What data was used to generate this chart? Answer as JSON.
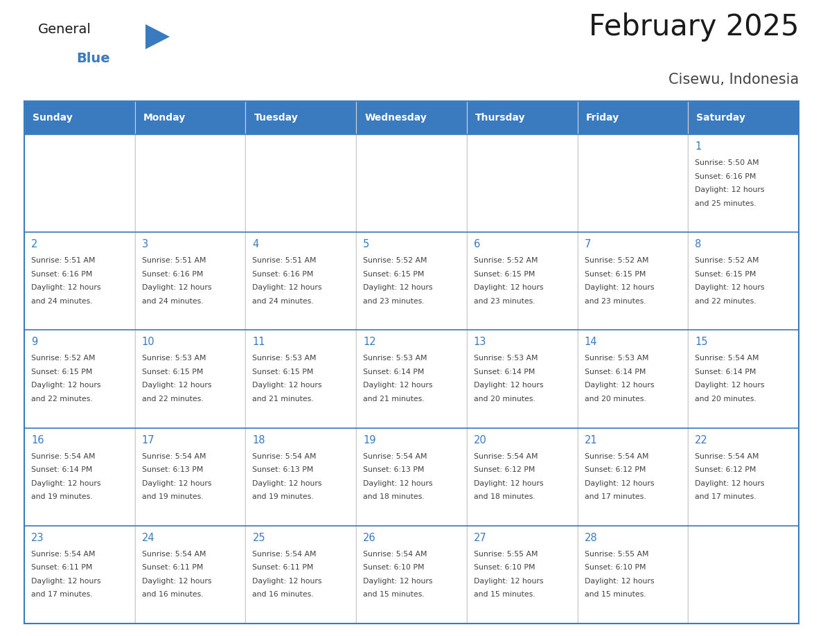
{
  "title": "February 2025",
  "subtitle": "Cisewu, Indonesia",
  "header_bg": "#3a7abf",
  "header_text_color": "#ffffff",
  "day_num_color": "#3a7abf",
  "text_color": "#404040",
  "border_color": "#3a7abf",
  "days_of_week": [
    "Sunday",
    "Monday",
    "Tuesday",
    "Wednesday",
    "Thursday",
    "Friday",
    "Saturday"
  ],
  "weeks": [
    [
      {
        "day": null,
        "sunrise": null,
        "sunset": null,
        "daylight": null
      },
      {
        "day": null,
        "sunrise": null,
        "sunset": null,
        "daylight": null
      },
      {
        "day": null,
        "sunrise": null,
        "sunset": null,
        "daylight": null
      },
      {
        "day": null,
        "sunrise": null,
        "sunset": null,
        "daylight": null
      },
      {
        "day": null,
        "sunrise": null,
        "sunset": null,
        "daylight": null
      },
      {
        "day": null,
        "sunrise": null,
        "sunset": null,
        "daylight": null
      },
      {
        "day": 1,
        "sunrise": "5:50 AM",
        "sunset": "6:16 PM",
        "daylight": "12 hours and 25 minutes."
      }
    ],
    [
      {
        "day": 2,
        "sunrise": "5:51 AM",
        "sunset": "6:16 PM",
        "daylight": "12 hours and 24 minutes."
      },
      {
        "day": 3,
        "sunrise": "5:51 AM",
        "sunset": "6:16 PM",
        "daylight": "12 hours and 24 minutes."
      },
      {
        "day": 4,
        "sunrise": "5:51 AM",
        "sunset": "6:16 PM",
        "daylight": "12 hours and 24 minutes."
      },
      {
        "day": 5,
        "sunrise": "5:52 AM",
        "sunset": "6:15 PM",
        "daylight": "12 hours and 23 minutes."
      },
      {
        "day": 6,
        "sunrise": "5:52 AM",
        "sunset": "6:15 PM",
        "daylight": "12 hours and 23 minutes."
      },
      {
        "day": 7,
        "sunrise": "5:52 AM",
        "sunset": "6:15 PM",
        "daylight": "12 hours and 23 minutes."
      },
      {
        "day": 8,
        "sunrise": "5:52 AM",
        "sunset": "6:15 PM",
        "daylight": "12 hours and 22 minutes."
      }
    ],
    [
      {
        "day": 9,
        "sunrise": "5:52 AM",
        "sunset": "6:15 PM",
        "daylight": "12 hours and 22 minutes."
      },
      {
        "day": 10,
        "sunrise": "5:53 AM",
        "sunset": "6:15 PM",
        "daylight": "12 hours and 22 minutes."
      },
      {
        "day": 11,
        "sunrise": "5:53 AM",
        "sunset": "6:15 PM",
        "daylight": "12 hours and 21 minutes."
      },
      {
        "day": 12,
        "sunrise": "5:53 AM",
        "sunset": "6:14 PM",
        "daylight": "12 hours and 21 minutes."
      },
      {
        "day": 13,
        "sunrise": "5:53 AM",
        "sunset": "6:14 PM",
        "daylight": "12 hours and 20 minutes."
      },
      {
        "day": 14,
        "sunrise": "5:53 AM",
        "sunset": "6:14 PM",
        "daylight": "12 hours and 20 minutes."
      },
      {
        "day": 15,
        "sunrise": "5:54 AM",
        "sunset": "6:14 PM",
        "daylight": "12 hours and 20 minutes."
      }
    ],
    [
      {
        "day": 16,
        "sunrise": "5:54 AM",
        "sunset": "6:14 PM",
        "daylight": "12 hours and 19 minutes."
      },
      {
        "day": 17,
        "sunrise": "5:54 AM",
        "sunset": "6:13 PM",
        "daylight": "12 hours and 19 minutes."
      },
      {
        "day": 18,
        "sunrise": "5:54 AM",
        "sunset": "6:13 PM",
        "daylight": "12 hours and 19 minutes."
      },
      {
        "day": 19,
        "sunrise": "5:54 AM",
        "sunset": "6:13 PM",
        "daylight": "12 hours and 18 minutes."
      },
      {
        "day": 20,
        "sunrise": "5:54 AM",
        "sunset": "6:12 PM",
        "daylight": "12 hours and 18 minutes."
      },
      {
        "day": 21,
        "sunrise": "5:54 AM",
        "sunset": "6:12 PM",
        "daylight": "12 hours and 17 minutes."
      },
      {
        "day": 22,
        "sunrise": "5:54 AM",
        "sunset": "6:12 PM",
        "daylight": "12 hours and 17 minutes."
      }
    ],
    [
      {
        "day": 23,
        "sunrise": "5:54 AM",
        "sunset": "6:11 PM",
        "daylight": "12 hours and 17 minutes."
      },
      {
        "day": 24,
        "sunrise": "5:54 AM",
        "sunset": "6:11 PM",
        "daylight": "12 hours and 16 minutes."
      },
      {
        "day": 25,
        "sunrise": "5:54 AM",
        "sunset": "6:11 PM",
        "daylight": "12 hours and 16 minutes."
      },
      {
        "day": 26,
        "sunrise": "5:54 AM",
        "sunset": "6:10 PM",
        "daylight": "12 hours and 15 minutes."
      },
      {
        "day": 27,
        "sunrise": "5:55 AM",
        "sunset": "6:10 PM",
        "daylight": "12 hours and 15 minutes."
      },
      {
        "day": 28,
        "sunrise": "5:55 AM",
        "sunset": "6:10 PM",
        "daylight": "12 hours and 15 minutes."
      },
      {
        "day": null,
        "sunrise": null,
        "sunset": null,
        "daylight": null
      }
    ]
  ]
}
